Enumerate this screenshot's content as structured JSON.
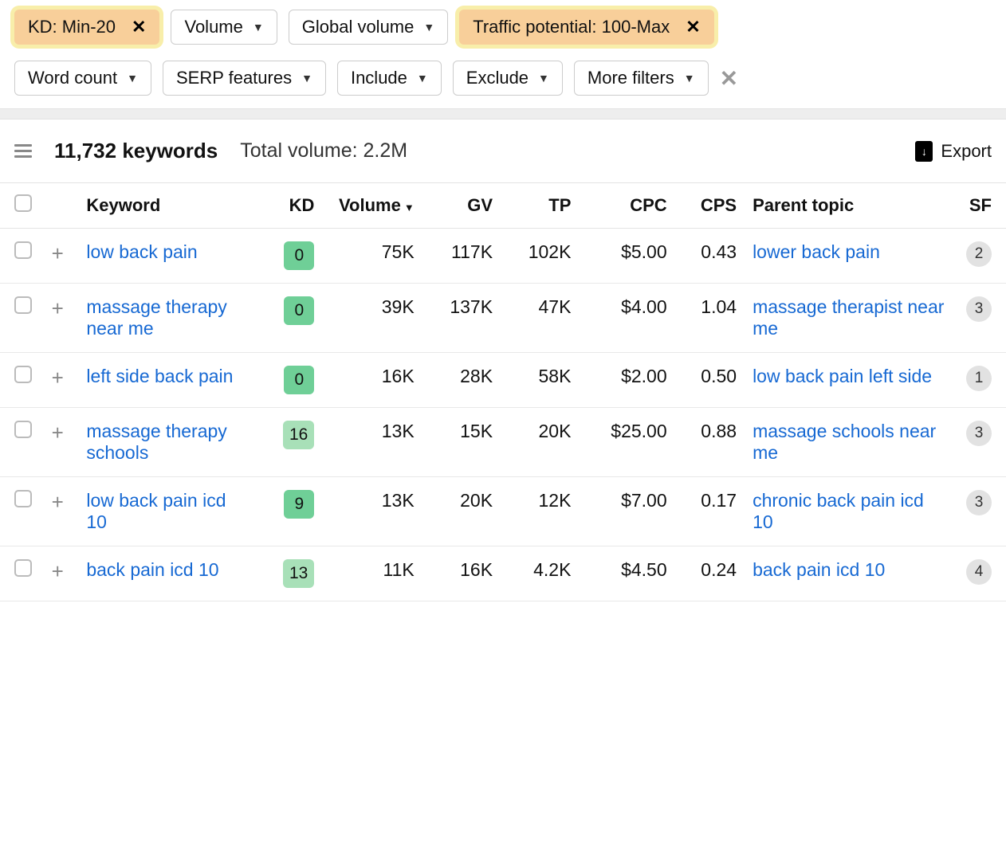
{
  "filters": {
    "row1": [
      {
        "label": "KD: Min-20",
        "active": true,
        "closable": true
      },
      {
        "label": "Volume",
        "active": false,
        "closable": false
      },
      {
        "label": "Global volume",
        "active": false,
        "closable": false
      },
      {
        "label": "Traffic potential: 100-Max",
        "active": true,
        "closable": true
      }
    ],
    "row2": [
      {
        "label": "Word count",
        "active": false,
        "closable": false
      },
      {
        "label": "SERP features",
        "active": false,
        "closable": false
      },
      {
        "label": "Include",
        "active": false,
        "closable": false
      },
      {
        "label": "Exclude",
        "active": false,
        "closable": false
      },
      {
        "label": "More filters",
        "active": false,
        "closable": false
      }
    ],
    "clear_all_icon": "×"
  },
  "summary": {
    "count_label": "11,732 keywords",
    "total_volume_label": "Total volume: 2.2M",
    "export_label": "Export"
  },
  "columns": {
    "keyword": "Keyword",
    "kd": "KD",
    "volume": "Volume",
    "gv": "GV",
    "tp": "TP",
    "cpc": "CPC",
    "cps": "CPS",
    "parent": "Parent topic",
    "sf": "SF",
    "sorted_by": "volume",
    "sort_dir": "desc"
  },
  "kd_colors": {
    "low": "#6fcf97",
    "mid": "#a8e0b8"
  },
  "rows": [
    {
      "keyword": "low back pain",
      "kd": 0,
      "kd_color": "#6fcf97",
      "volume": "75K",
      "gv": "117K",
      "tp": "102K",
      "cpc": "$5.00",
      "cps": "0.43",
      "parent": "lower back pain",
      "sf": 2
    },
    {
      "keyword": "massage therapy near me",
      "kd": 0,
      "kd_color": "#6fcf97",
      "volume": "39K",
      "gv": "137K",
      "tp": "47K",
      "cpc": "$4.00",
      "cps": "1.04",
      "parent": "massage therapist near me",
      "sf": 3
    },
    {
      "keyword": "left side back pain",
      "kd": 0,
      "kd_color": "#6fcf97",
      "volume": "16K",
      "gv": "28K",
      "tp": "58K",
      "cpc": "$2.00",
      "cps": "0.50",
      "parent": "low back pain left side",
      "sf": 1
    },
    {
      "keyword": "massage therapy schools",
      "kd": 16,
      "kd_color": "#a8e0b8",
      "volume": "13K",
      "gv": "15K",
      "tp": "20K",
      "cpc": "$25.00",
      "cps": "0.88",
      "parent": "massage schools near me",
      "sf": 3
    },
    {
      "keyword": "low back pain icd 10",
      "kd": 9,
      "kd_color": "#6fcf97",
      "volume": "13K",
      "gv": "20K",
      "tp": "12K",
      "cpc": "$7.00",
      "cps": "0.17",
      "parent": "chronic back pain icd 10",
      "sf": 3
    },
    {
      "keyword": "back pain icd 10",
      "kd": 13,
      "kd_color": "#a8e0b8",
      "volume": "11K",
      "gv": "16K",
      "tp": "4.2K",
      "cpc": "$4.50",
      "cps": "0.24",
      "parent": "back pain icd 10",
      "sf": 4
    }
  ]
}
